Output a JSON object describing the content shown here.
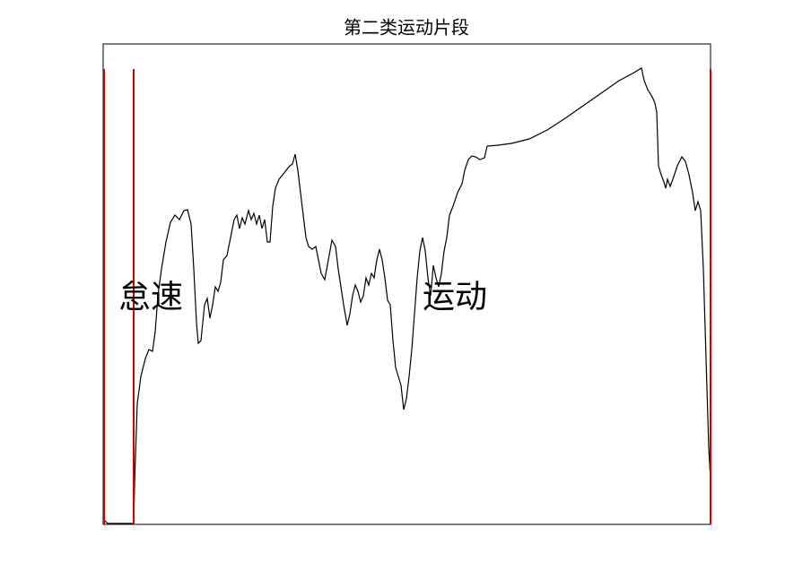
{
  "chart_data": {
    "type": "line",
    "title": "第二类运动片段",
    "annotations": [
      "怠速",
      "运动"
    ],
    "xlim": [
      0,
      677
    ],
    "ylim": [
      0,
      536
    ],
    "grid": false,
    "color": "#000000",
    "x": [
      1,
      5,
      34,
      35,
      38,
      42,
      47,
      51,
      55,
      58,
      61,
      65,
      70,
      75,
      80,
      85,
      90,
      94,
      98,
      101,
      104,
      106,
      109,
      113,
      116,
      119,
      122,
      125,
      128,
      131,
      134,
      138,
      142,
      146,
      149,
      152,
      155,
      158,
      162,
      165,
      168,
      171,
      174,
      177,
      180,
      183,
      186,
      189,
      192,
      196,
      200,
      204,
      208,
      211,
      214,
      217,
      220,
      223,
      226,
      229,
      233,
      237,
      240,
      243,
      247,
      251,
      255,
      259,
      262,
      265,
      268,
      272,
      275,
      278,
      281,
      284,
      287,
      290,
      293,
      296,
      299,
      302,
      305,
      308,
      311,
      314,
      317,
      320,
      323,
      326,
      329,
      332,
      335,
      338,
      341,
      344,
      347,
      350,
      353,
      356,
      359,
      362,
      365,
      368,
      371,
      374,
      377,
      380,
      383,
      386,
      390,
      395,
      400,
      403,
      407,
      411,
      415,
      420,
      425,
      428,
      440,
      455,
      475,
      495,
      515,
      535,
      555,
      575,
      590,
      600,
      603,
      607,
      612,
      615,
      617,
      619,
      622,
      625,
      627,
      629,
      632,
      635,
      640,
      645,
      649,
      653,
      657,
      660,
      663,
      666,
      669,
      672,
      675,
      677
    ],
    "values": [
      5,
      1,
      1,
      45,
      135,
      165,
      185,
      195,
      193,
      215,
      255,
      285,
      315,
      337,
      345,
      340,
      350,
      351,
      335,
      285,
      225,
      202,
      205,
      245,
      252,
      230,
      245,
      265,
      260,
      270,
      295,
      300,
      320,
      340,
      345,
      330,
      342,
      335,
      350,
      340,
      347,
      335,
      345,
      330,
      340,
      315,
      315,
      355,
      375,
      385,
      390,
      395,
      400,
      402,
      413,
      395,
      370,
      345,
      320,
      310,
      307,
      310,
      295,
      280,
      273,
      295,
      317,
      310,
      285,
      265,
      245,
      222,
      235,
      255,
      267,
      260,
      248,
      255,
      275,
      267,
      280,
      275,
      295,
      307,
      295,
      275,
      250,
      245,
      205,
      175,
      165,
      155,
      128,
      140,
      165,
      195,
      235,
      275,
      305,
      320,
      305,
      275,
      255,
      289,
      275,
      265,
      280,
      305,
      320,
      345,
      355,
      370,
      380,
      395,
      407,
      411,
      410,
      407,
      409,
      422,
      423,
      425,
      430,
      440,
      453,
      467,
      481,
      495,
      503,
      509,
      495,
      485,
      477,
      470,
      460,
      400,
      390,
      382,
      375,
      385,
      377,
      385,
      400,
      410,
      405,
      390,
      370,
      350,
      360,
      350,
      285,
      185,
      85,
      50
    ],
    "vlines": {
      "color": "#d00000",
      "x": [
        1,
        34,
        677
      ],
      "top": 508
    }
  }
}
